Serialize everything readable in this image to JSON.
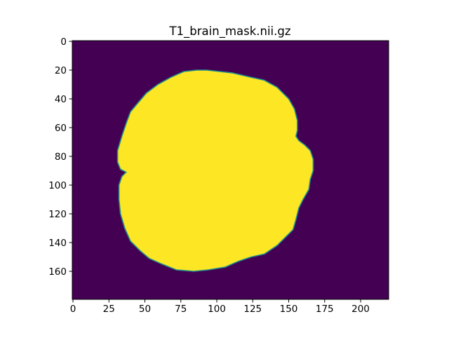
{
  "chart_data": {
    "type": "heatmap",
    "title": "T1_brain_mask.nii.gz",
    "xlabel": "",
    "ylabel": "",
    "xlim": [
      -0.5,
      219.5
    ],
    "ylim": [
      179.5,
      -0.5
    ],
    "y_axis_inverted": true,
    "grid": false,
    "legend": "none",
    "x_ticks": [
      0,
      25,
      50,
      75,
      100,
      125,
      150,
      175,
      200
    ],
    "x_tick_labels": [
      "0",
      "25",
      "50",
      "75",
      "100",
      "125",
      "150",
      "175",
      "200"
    ],
    "y_ticks": [
      0,
      20,
      40,
      60,
      80,
      100,
      120,
      140,
      160
    ],
    "y_tick_labels": [
      "0",
      "20",
      "40",
      "60",
      "80",
      "100",
      "120",
      "140",
      "160"
    ],
    "image_shape": [
      180,
      220
    ],
    "colormap": "viridis",
    "value_range": [
      0,
      1
    ],
    "colors": {
      "background_value_0": "#440154",
      "mask_value_1": "#fde725",
      "mask_edge": "#21918c"
    },
    "mask_outline": [
      [
        93,
        20
      ],
      [
        111,
        22
      ],
      [
        124,
        25
      ],
      [
        133,
        27
      ],
      [
        142,
        32
      ],
      [
        150,
        40
      ],
      [
        154,
        47
      ],
      [
        156,
        55
      ],
      [
        156,
        62
      ],
      [
        155,
        66
      ],
      [
        157,
        69
      ],
      [
        161,
        72
      ],
      [
        165,
        76
      ],
      [
        167,
        82
      ],
      [
        167,
        90
      ],
      [
        165,
        96
      ],
      [
        164,
        103
      ],
      [
        160,
        110
      ],
      [
        157,
        116
      ],
      [
        155,
        124
      ],
      [
        153,
        131
      ],
      [
        148,
        136
      ],
      [
        142,
        142
      ],
      [
        133,
        148
      ],
      [
        124,
        150
      ],
      [
        115,
        153
      ],
      [
        106,
        157
      ],
      [
        94,
        159
      ],
      [
        84,
        160
      ],
      [
        72,
        159
      ],
      [
        62,
        155
      ],
      [
        53,
        151
      ],
      [
        47,
        146
      ],
      [
        40,
        139
      ],
      [
        36,
        130
      ],
      [
        33,
        120
      ],
      [
        32,
        110
      ],
      [
        32,
        100
      ],
      [
        34,
        94
      ],
      [
        37,
        91
      ],
      [
        33,
        89
      ],
      [
        31,
        84
      ],
      [
        31,
        76
      ],
      [
        34,
        66
      ],
      [
        37,
        57
      ],
      [
        40,
        49
      ],
      [
        45,
        43
      ],
      [
        51,
        36
      ],
      [
        59,
        30
      ],
      [
        68,
        25
      ],
      [
        77,
        21
      ],
      [
        86,
        20
      ]
    ]
  }
}
